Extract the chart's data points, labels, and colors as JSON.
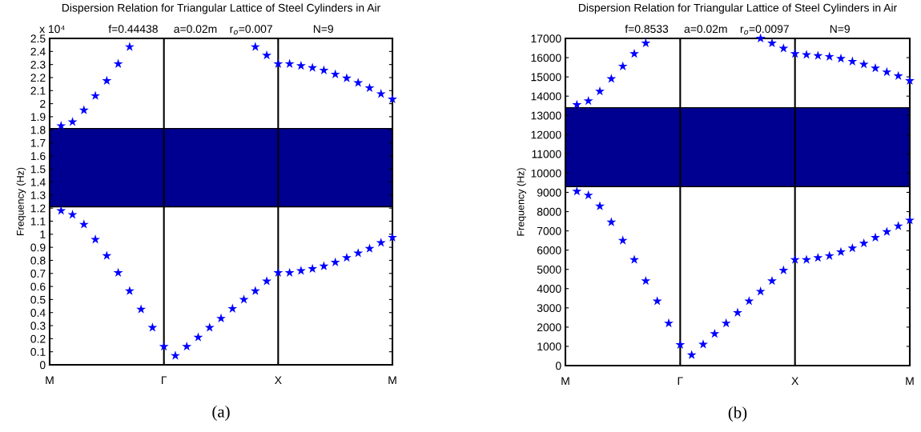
{
  "chart_data": [
    {
      "type": "scatter",
      "title": "Dispersion Relation for Triangular Lattice of Steel Cylinders in Air",
      "subtitle": "f=0.44438     a=0.02m    r$_{o}$=0.007             N=9",
      "ylabel": "Frequency (Hz)",
      "annotations": [
        "(a)",
        "x 10⁴"
      ],
      "marker": "star",
      "grid": false,
      "legend": false,
      "categories": [
        "M",
        null,
        null,
        null,
        null,
        null,
        null,
        null,
        null,
        null,
        "Γ",
        null,
        null,
        null,
        null,
        null,
        null,
        null,
        null,
        null,
        "X",
        null,
        null,
        null,
        null,
        null,
        null,
        null,
        null,
        null,
        "M"
      ],
      "ylim": [
        0,
        2.5
      ],
      "yticks": [
        0,
        0.1,
        0.2,
        0.3,
        0.4,
        0.5,
        0.6,
        0.7,
        0.8,
        0.9,
        1,
        1.1,
        1.2,
        1.3,
        1.4,
        1.5,
        1.6,
        1.7,
        1.8,
        1.9,
        2,
        2.1,
        2.2,
        2.3,
        2.4,
        2.5
      ],
      "ref_lines": [
        {
          "axis": "x",
          "value": "Γ",
          "color": "#000000"
        },
        {
          "axis": "x",
          "value": "X",
          "color": "#000000"
        }
      ],
      "bands": [
        {
          "axis": "y",
          "from": 1.21,
          "to": 1.81,
          "color": "#000090"
        }
      ],
      "series": [
        {
          "color": "#0000ff",
          "values": [
            null,
            1.18,
            1.15,
            1.075,
            0.96,
            0.835,
            0.705,
            0.565,
            0.425,
            0.285,
            0.14,
            0.07,
            0.14,
            0.21,
            0.285,
            0.355,
            0.43,
            0.5,
            0.565,
            0.64,
            0.705,
            0.705,
            0.72,
            0.735,
            0.755,
            0.785,
            0.82,
            0.855,
            0.89,
            0.935,
            0.975
          ]
        },
        {
          "color": "#0000ff",
          "values": [
            null,
            1.83,
            1.86,
            1.95,
            2.06,
            2.175,
            2.305,
            2.435,
            null,
            null,
            null,
            null,
            null,
            null,
            null,
            null,
            null,
            null,
            2.435,
            2.37,
            2.305,
            2.305,
            2.29,
            2.275,
            2.255,
            2.225,
            2.195,
            2.16,
            2.12,
            2.075,
            2.035
          ]
        }
      ]
    },
    {
      "type": "scatter",
      "title": "Dispersion Relation for Triangular Lattice of Steel Cylinders in Air",
      "subtitle": "f=0.8533     a=0.02m    r$_{o}$=0.0097             N=9",
      "ylabel": "Frequency (Hz)",
      "annotations": [
        "(b)"
      ],
      "marker": "star",
      "grid": false,
      "legend": false,
      "categories": [
        "M",
        null,
        null,
        null,
        null,
        null,
        null,
        null,
        null,
        null,
        "Γ",
        null,
        null,
        null,
        null,
        null,
        null,
        null,
        null,
        null,
        "X",
        null,
        null,
        null,
        null,
        null,
        null,
        null,
        null,
        null,
        "M"
      ],
      "ylim": [
        0,
        17000
      ],
      "yticks": [
        0,
        1000,
        2000,
        3000,
        4000,
        5000,
        6000,
        7000,
        8000,
        9000,
        10000,
        11000,
        12000,
        13000,
        14000,
        15000,
        16000,
        17000
      ],
      "ref_lines": [
        {
          "axis": "x",
          "value": "Γ",
          "color": "#000000"
        },
        {
          "axis": "x",
          "value": "X",
          "color": "#000000"
        }
      ],
      "bands": [
        {
          "axis": "y",
          "from": 9300,
          "to": 13400,
          "color": "#000090"
        }
      ],
      "series": [
        {
          "color": "#0000ff",
          "values": [
            null,
            9050,
            8850,
            8280,
            7450,
            6500,
            5500,
            4400,
            3350,
            2200,
            1080,
            550,
            1100,
            1650,
            2200,
            2750,
            3350,
            3850,
            4400,
            4950,
            5500,
            5500,
            5600,
            5700,
            5900,
            6100,
            6350,
            6650,
            6950,
            7250,
            7550
          ]
        },
        {
          "color": "#0000ff",
          "values": [
            null,
            13550,
            13750,
            14250,
            14900,
            15550,
            16200,
            16750,
            null,
            null,
            null,
            null,
            null,
            null,
            null,
            null,
            null,
            17000,
            16750,
            16480,
            16200,
            16150,
            16100,
            16050,
            15950,
            15800,
            15650,
            15450,
            15250,
            15050,
            14800
          ]
        }
      ]
    }
  ]
}
